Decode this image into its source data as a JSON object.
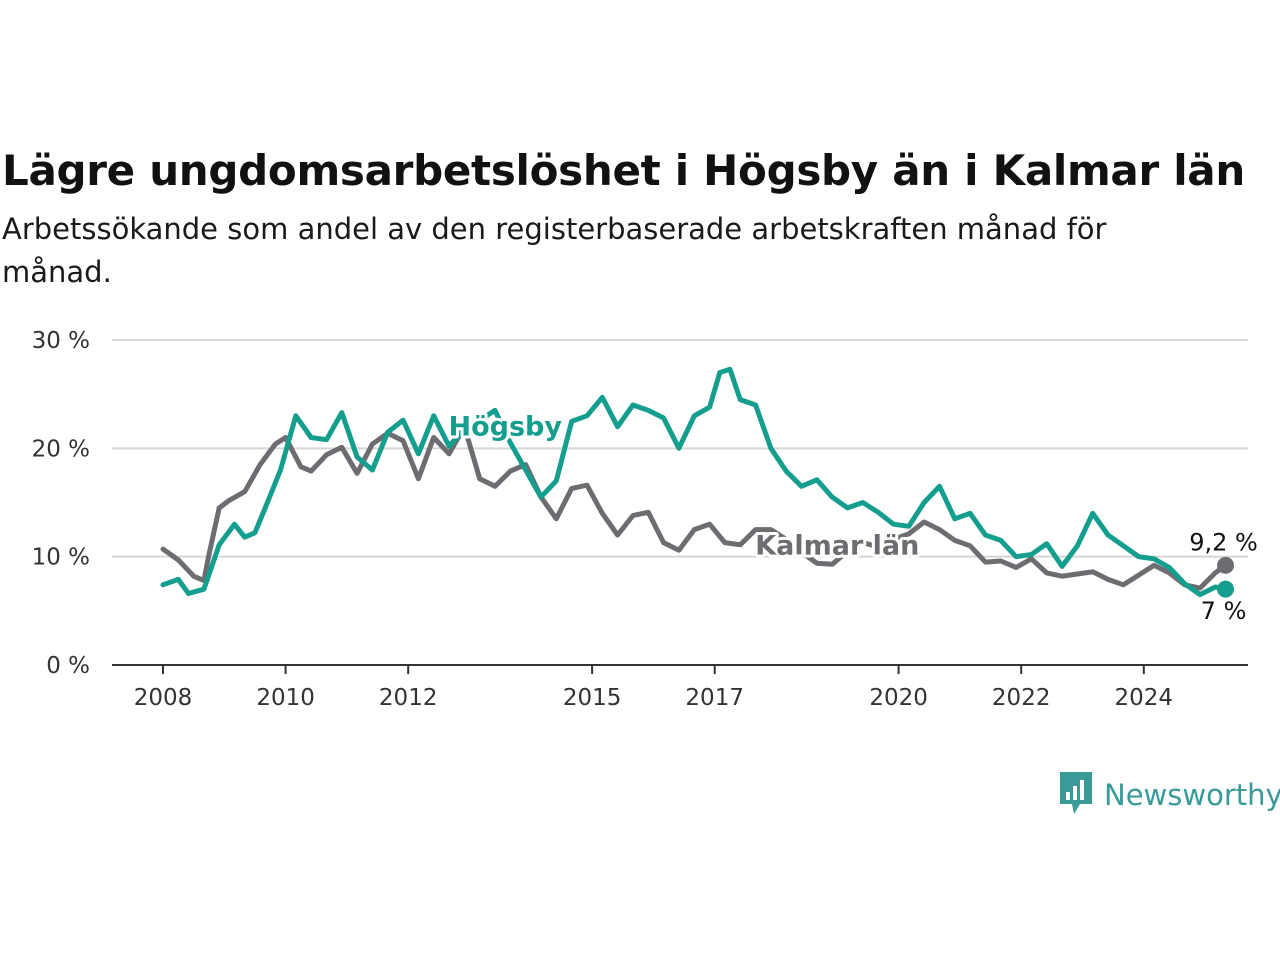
{
  "title": "Lägre ungdomsarbetslöshet i Högsby än i Kalmar län",
  "subtitle": "Arbetssökande som andel av den registerbaserade arbetskraften månad för månad.",
  "brand": {
    "name": "Newsworthy",
    "icon": "newsworthy-logo-icon",
    "color": "#3a9a98"
  },
  "chart_data": {
    "type": "line",
    "title": "Lägre ungdomsarbetslöshet i Högsby än i Kalmar län",
    "subtitle": "Arbetssökande som andel av den registerbaserade arbetskraften månad för månad.",
    "xlabel": "",
    "ylabel": "",
    "ylim": [
      0,
      30
    ],
    "xlim": [
      "2008-01",
      "2025-06"
    ],
    "grid": true,
    "legend": "inline",
    "y_ticks": [
      0,
      10,
      20,
      30
    ],
    "y_tick_labels": [
      "0 %",
      "10 %",
      "20 %",
      "30 %"
    ],
    "x_ticks": [
      "2008-01",
      "2010-01",
      "2012-01",
      "2015-01",
      "2017-01",
      "2020-01",
      "2022-01",
      "2024-01"
    ],
    "x_tick_labels": [
      "2008",
      "2010",
      "2012",
      "2015",
      "2017",
      "2020",
      "2022",
      "2024"
    ],
    "series": [
      {
        "name": "Kalmar län",
        "color": "#6d6c70",
        "end_label": "9,2 %",
        "x": [
          "2008-01",
          "2008-04",
          "2008-07",
          "2008-09",
          "2008-10",
          "2008-12",
          "2009-02",
          "2009-05",
          "2009-08",
          "2009-11",
          "2010-01",
          "2010-04",
          "2010-06",
          "2010-09",
          "2010-12",
          "2011-03",
          "2011-06",
          "2011-09",
          "2011-12",
          "2012-03",
          "2012-06",
          "2012-09",
          "2012-12",
          "2013-03",
          "2013-06",
          "2013-09",
          "2013-12",
          "2014-03",
          "2014-06",
          "2014-09",
          "2014-12",
          "2015-03",
          "2015-06",
          "2015-09",
          "2015-12",
          "2016-03",
          "2016-06",
          "2016-09",
          "2016-12",
          "2017-03",
          "2017-06",
          "2017-09",
          "2017-12",
          "2018-03",
          "2018-06",
          "2018-09",
          "2018-12",
          "2019-03",
          "2019-06",
          "2019-09",
          "2019-12",
          "2020-03",
          "2020-06",
          "2020-09",
          "2020-12",
          "2021-03",
          "2021-06",
          "2021-09",
          "2021-12",
          "2022-03",
          "2022-06",
          "2022-09",
          "2022-12",
          "2023-03",
          "2023-06",
          "2023-09",
          "2023-12",
          "2024-03",
          "2024-06",
          "2024-09",
          "2024-12",
          "2025-03",
          "2025-05"
        ],
        "values": [
          10.7,
          9.7,
          8.2,
          7.8,
          10.2,
          14.5,
          15.2,
          16.0,
          18.5,
          20.4,
          21.0,
          18.3,
          17.9,
          19.4,
          20.1,
          17.7,
          20.4,
          21.4,
          20.7,
          17.2,
          21.0,
          19.5,
          22.0,
          17.2,
          16.5,
          17.9,
          18.5,
          15.5,
          13.5,
          16.3,
          16.6,
          14.0,
          12.0,
          13.8,
          14.1,
          11.3,
          10.6,
          12.5,
          13.0,
          11.3,
          11.1,
          12.5,
          12.5,
          11.6,
          10.4,
          9.4,
          9.3,
          10.5,
          11.3,
          10.9,
          11.6,
          12.1,
          13.2,
          12.5,
          11.5,
          11.0,
          9.5,
          9.6,
          9.0,
          9.8,
          8.5,
          8.2,
          8.4,
          8.6,
          7.9,
          7.4,
          8.3,
          9.2,
          8.5,
          7.4,
          7.1,
          8.5,
          9.2
        ]
      },
      {
        "name": "Högsby",
        "color": "#149e8e",
        "end_label": "7 %",
        "x": [
          "2008-01",
          "2008-04",
          "2008-06",
          "2008-09",
          "2008-12",
          "2009-03",
          "2009-05",
          "2009-07",
          "2009-09",
          "2009-12",
          "2010-03",
          "2010-06",
          "2010-09",
          "2010-12",
          "2011-03",
          "2011-06",
          "2011-09",
          "2011-12",
          "2012-03",
          "2012-06",
          "2012-09",
          "2012-12",
          "2013-03",
          "2013-06",
          "2013-09",
          "2013-12",
          "2014-03",
          "2014-06",
          "2014-09",
          "2014-12",
          "2015-03",
          "2015-06",
          "2015-09",
          "2015-12",
          "2016-03",
          "2016-06",
          "2016-09",
          "2016-12",
          "2017-02",
          "2017-04",
          "2017-06",
          "2017-09",
          "2017-12",
          "2018-03",
          "2018-06",
          "2018-09",
          "2018-12",
          "2019-03",
          "2019-06",
          "2019-09",
          "2019-12",
          "2020-03",
          "2020-06",
          "2020-09",
          "2020-12",
          "2021-03",
          "2021-06",
          "2021-09",
          "2021-12",
          "2022-03",
          "2022-06",
          "2022-09",
          "2022-12",
          "2023-03",
          "2023-06",
          "2023-09",
          "2023-12",
          "2024-03",
          "2024-06",
          "2024-09",
          "2024-12",
          "2025-03",
          "2025-05"
        ],
        "values": [
          7.4,
          7.9,
          6.6,
          7.0,
          11.1,
          13.0,
          11.8,
          12.2,
          14.5,
          18.0,
          23.0,
          21.0,
          20.8,
          23.3,
          19.2,
          18.0,
          21.5,
          22.6,
          19.5,
          23.0,
          20.2,
          21.8,
          22.6,
          23.5,
          20.5,
          18.0,
          15.5,
          17.0,
          22.5,
          23.0,
          24.7,
          22.0,
          24.0,
          23.5,
          22.8,
          20.0,
          23.0,
          23.8,
          27.0,
          27.3,
          24.5,
          24.0,
          20.0,
          17.9,
          16.5,
          17.1,
          15.5,
          14.5,
          15.0,
          14.1,
          13.0,
          12.8,
          15.0,
          16.5,
          13.5,
          14.0,
          12.0,
          11.5,
          10.0,
          10.2,
          11.2,
          9.1,
          11.0,
          14.0,
          12.0,
          11.0,
          10.0,
          9.8,
          9.0,
          7.5,
          6.5,
          7.2,
          7.0
        ]
      }
    ]
  }
}
